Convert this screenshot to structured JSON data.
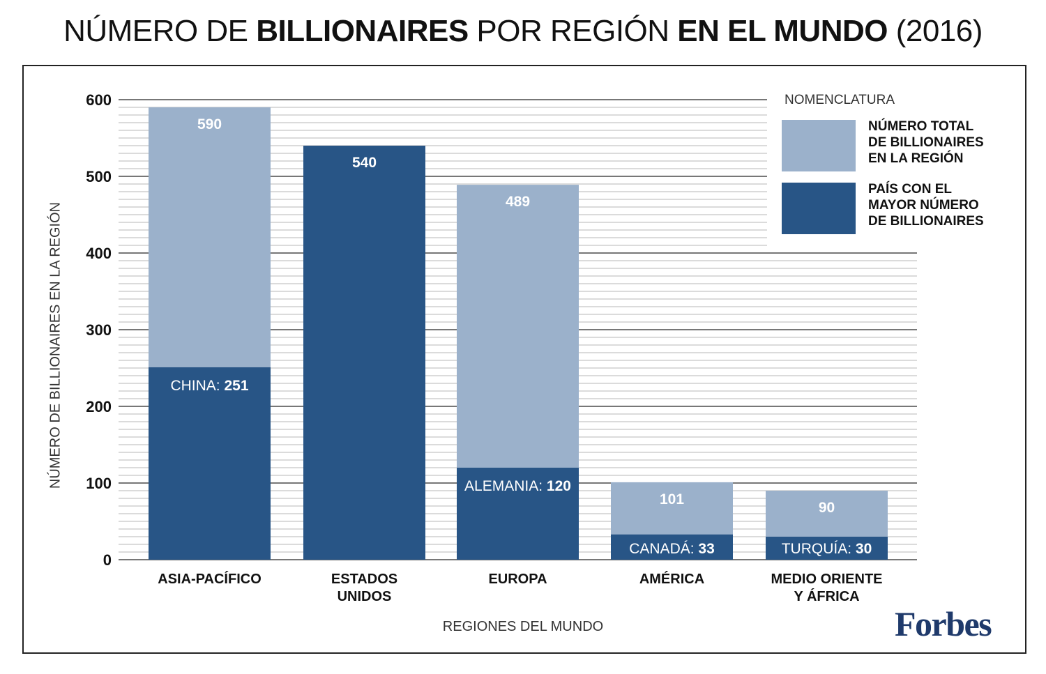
{
  "title": {
    "parts": [
      {
        "text": "NÚMERO DE ",
        "bold": false
      },
      {
        "text": "BILLIONAIRES",
        "bold": true
      },
      {
        "text": " POR REGIÓN ",
        "bold": false
      },
      {
        "text": "EN EL MUNDO",
        "bold": true
      },
      {
        "text": " (2016)",
        "bold": false
      }
    ]
  },
  "legend": {
    "title": "NOMENCLATURA",
    "items": [
      {
        "label": "NÚMERO TOTAL\nDE BILLIONAIRES\nEN LA REGIÓN",
        "color": "#9bb1cb"
      },
      {
        "label": "PAÍS CON EL\nMAYOR NÚMERO\nDE BILLIONAIRES",
        "color": "#285586"
      }
    ]
  },
  "logo": "Forbes",
  "colors": {
    "total": "#9bb1cb",
    "top_country": "#285586",
    "major_grid": "#777777",
    "minor_grid": "#cfcfcf",
    "logo": "#1f3a6b"
  },
  "chart_data": {
    "type": "bar",
    "title": "NÚMERO DE BILLIONAIRES POR REGIÓN EN EL MUNDO (2016)",
    "xlabel": "REGIONES DEL MUNDO",
    "ylabel": "NÚMERO DE BILLIONAIRES EN LA REGIÓN",
    "ylim": [
      0,
      600
    ],
    "yticks": [
      0,
      100,
      200,
      300,
      400,
      500,
      600
    ],
    "minor_tick_step": 10,
    "grid": true,
    "legend_position": "top-right",
    "categories": [
      "ASIA-PACÍFICO",
      "ESTADOS\nUNIDOS",
      "EUROPA",
      "AMÉRICA",
      "MEDIO ORIENTE\nY ÁFRICA"
    ],
    "series": [
      {
        "name": "NÚMERO TOTAL DE BILLIONAIRES EN LA REGIÓN",
        "values": [
          590,
          540,
          489,
          101,
          90
        ]
      },
      {
        "name": "PAÍS CON EL MAYOR NÚMERO DE BILLIONAIRES",
        "values": [
          251,
          540,
          120,
          33,
          30
        ]
      }
    ],
    "total_labels": [
      "590",
      "540",
      "489",
      "101",
      "90"
    ],
    "country_labels": [
      {
        "country": "CHINA:",
        "value": "251"
      },
      null,
      {
        "country": "ALEMANIA:",
        "value": "120"
      },
      {
        "country": "CANADÁ:",
        "value": "33"
      },
      {
        "country": "TURQUÍA:",
        "value": "30"
      }
    ]
  }
}
